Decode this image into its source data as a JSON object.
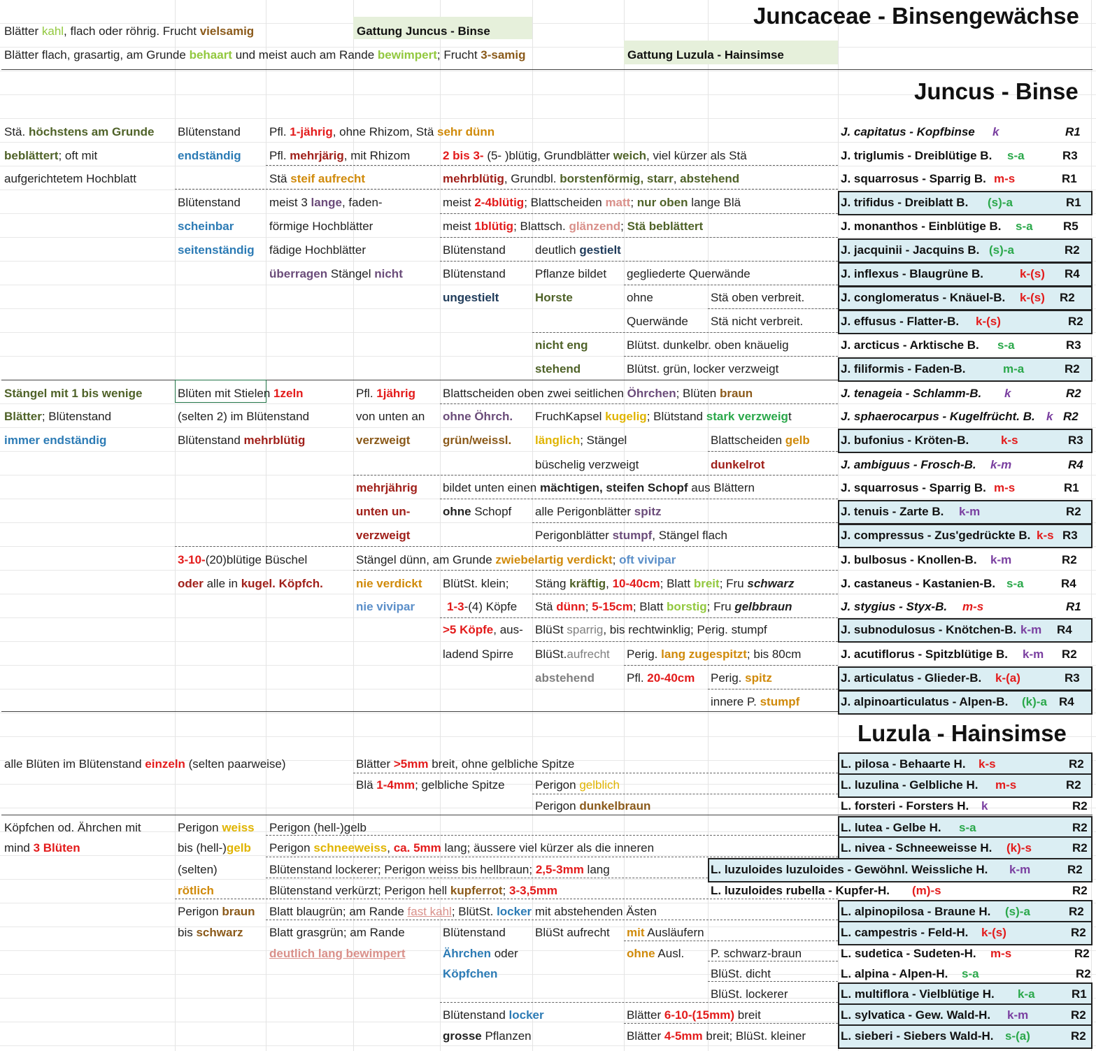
{
  "titles": {
    "main": "Juncaceae - Binsengewächse",
    "juncus": "Juncus - Binse",
    "luzula": "Luzula - Hainsimse"
  },
  "intro": {
    "row1": [
      "Blätter ",
      "kahl",
      ", flach oder röhrig. Frucht ",
      "vielsamig"
    ],
    "genus1": "Gattung Juncus - Binse",
    "row2": [
      "Blätter flach, grasartig, am Grunde ",
      "behaart",
      " und meist auch am Rande ",
      "bewimpert",
      "; Frucht ",
      "3-samig"
    ],
    "genus2": "Gattung Luzula - Hainsimse"
  },
  "juncus": {
    "a1": [
      "Stä. ",
      "höchstens am Grunde"
    ],
    "a2": [
      "beblättert",
      "; oft mit"
    ],
    "a3": "aufgerichtetem Hochblatt",
    "b1": "Blütenstand",
    "b2": "endständig",
    "b3": "Blütenstand",
    "b4": "scheinbar",
    "b5": "seitenständig",
    "r1": [
      "Pfl. ",
      "1-jährig",
      ", ohne Rhizom, Stä ",
      "sehr dünn"
    ],
    "r2a": [
      "Pfl. ",
      "mehrjärig",
      ", mit Rhizom"
    ],
    "r2b": [
      "2 bis 3-",
      " (5- )blütig, Grundblätter ",
      "weich",
      ", viel kürzer als Stä"
    ],
    "r3a": [
      "Stä ",
      "steif aufrecht"
    ],
    "r3b": [
      "mehrblütig",
      ", Grundbl. ",
      "borstenförmig, starr",
      ",  ",
      "abstehend"
    ],
    "r4a": [
      "meist 3 ",
      "lange",
      ", faden-"
    ],
    "r4b": [
      "meist ",
      "2-4blütig",
      "; Blattscheiden ",
      "matt",
      "; ",
      "nur oben",
      " lange Blä"
    ],
    "r5a": "förmige Hochblätter",
    "r5b": [
      "meist ",
      "1blütig",
      "; Blattsch. ",
      "glänzend",
      "; ",
      "Stä beblättert"
    ],
    "r6a": "fädige Hochblätter",
    "r6b": "Blütenstand",
    "r6c": [
      "deutlich ",
      "gestielt"
    ],
    "r7a": [
      "überragen",
      " Stängel ",
      "nicht"
    ],
    "r7b": "Blütenstand",
    "r7c": "Pflanze bildet",
    "r7d": "gegliederte Querwände",
    "r8b": "ungestielt",
    "r8c": "Horste",
    "r8d": "ohne",
    "r8e": "Stä oben verbreit.",
    "r9d": "Querwände",
    "r9e": "Stä nicht verbreit.",
    "r10c": "nicht eng",
    "r10d": "Blütst. dunkelbr. oben knäuelig",
    "r11c": "stehend",
    "r11d": "Blütst. grün, locker verzweigt",
    "s1a": "Stängel mit 1 bis wenige",
    "s1b": [
      "Blüten mit Stie",
      "len ",
      "1zeln"
    ],
    "s1c": [
      "Pfl. ",
      "1jährig"
    ],
    "s1d": [
      "Blattscheiden oben zwei seitlichen ",
      "Öhrchen",
      "; Blüten ",
      "braun"
    ],
    "s2a": [
      "Blätter",
      "; Blütenstand"
    ],
    "s2b": "(selten 2) im Blütenstand",
    "s2c": "von unten an",
    "s2d": "ohne Öhrch.",
    "s2e": [
      "FruchKapsel ",
      "kugelig",
      "; Blütstand ",
      "stark verzweig",
      "t"
    ],
    "s3a": "immer endständig",
    "s3b": [
      "Blütenstand ",
      "mehrblütig"
    ],
    "s3c": "verzweigt",
    "s3d": "grün/weissl.",
    "s3e": [
      "länglich",
      "; Stängel"
    ],
    "s3f": [
      "Blattscheiden ",
      "gelb"
    ],
    "s4e": "büschelig verzweigt",
    "s4f": "dunkelrot",
    "s5c": "mehrjährig",
    "s5d": [
      "bildet unten einen ",
      "mächtigen, steifen Schopf",
      " aus Blättern"
    ],
    "s6c": "unten un-",
    "s6d": [
      "ohne",
      " Schopf"
    ],
    "s6e": [
      "alle Perigonblätter ",
      "spitz"
    ],
    "s7c": "verzweigt",
    "s7e": [
      "Perigonblätter ",
      "stumpf",
      ", Stängel flach"
    ],
    "t1b": [
      "3-10-",
      "(20)blütige Büschel"
    ],
    "t1c": [
      "Stängel dünn, am Grunde ",
      "zwiebelartig verdickt",
      "; ",
      "oft vivipar"
    ],
    "t2b": [
      "oder",
      " alle in ",
      "kugel. Köpfch."
    ],
    "t2c": "nie verdickt",
    "t2d": "BlütSt. klein;",
    "t2e": [
      "Stäng ",
      "kräftig",
      ", ",
      "10-40cm",
      ";",
      " Blatt ",
      "breit",
      "; Fru ",
      "schwarz"
    ],
    "t3c": "nie vivipar",
    "t3d": [
      "1-3",
      "-(4) Köpfe"
    ],
    "t3e": [
      "Stä ",
      "dünn",
      "; ",
      "5-15cm",
      "; Blatt ",
      "borstig",
      "; Fru ",
      "gelbbraun"
    ],
    "t4d": [
      ">5 Köpfe",
      ", aus-"
    ],
    "t4e": [
      "BlüSt ",
      "sparrig",
      ", bis rechtwinklig; Perig. stumpf"
    ],
    "t5d": "ladend Spirre",
    "t5e": [
      "BlüSt.",
      "aufrecht"
    ],
    "t5f": [
      "Perig. ",
      "lang zugespitzt",
      "; bis 80cm"
    ],
    "t6e": "abstehend",
    "t6f": [
      "Pfl. ",
      "20-40cm"
    ],
    "t6g": [
      "Perig. ",
      "spitz"
    ],
    "t7g": [
      "innere P. ",
      "stumpf"
    ]
  },
  "juncus_species": [
    {
      "name": "J. capitatus - Kopfbinse",
      "code": "k",
      "r": "R1",
      "italic": true,
      "box": false
    },
    {
      "name": "J. triglumis - Dreiblütige B.",
      "code": "s-a",
      "r": "R3",
      "italic": false,
      "box": false
    },
    {
      "name": "J. squarrosus - Sparrig B.",
      "code": "m-s",
      "r": "R1",
      "italic": false,
      "box": false
    },
    {
      "name": "J. trifidus - Dreiblatt B.",
      "code": "(s)-a",
      "r": "R1",
      "italic": false,
      "box": true
    },
    {
      "name": "J. monanthos - Einblütige B.",
      "code": "s-a",
      "r": "R5",
      "italic": false,
      "box": false
    },
    {
      "name": "J. jacquinii - Jacquins B.",
      "code": "(s)-a",
      "r": "R2",
      "italic": false,
      "box": true
    },
    {
      "name": "J. inflexus - Blaugrüne B.",
      "code": "k-(s)",
      "r": "R4",
      "italic": false,
      "box": true
    },
    {
      "name": "J. conglomeratus - Knäuel-B.",
      "code": "k-(s)",
      "r": "R2",
      "italic": false,
      "box": true
    },
    {
      "name": "J. effusus - Flatter-B.",
      "code": "k-(s)",
      "r": "R2",
      "italic": false,
      "box": true
    },
    {
      "name": "J. arcticus - Arktische B.",
      "code": "s-a",
      "r": "R3",
      "italic": false,
      "box": false
    },
    {
      "name": "J. filiformis - Faden-B.",
      "code": "m-a",
      "r": "R2",
      "italic": false,
      "box": true
    },
    {
      "name": "J. tenageia - Schlamm-B.",
      "code": "k",
      "r": "R2",
      "italic": true,
      "box": false
    },
    {
      "name": "J. sphaerocarpus - Kugelfrücht. B.",
      "code": "k",
      "r": "R2",
      "italic": true,
      "box": false
    },
    {
      "name": "J. bufonius - Kröten-B.",
      "code": "k-s",
      "r": "R3",
      "italic": false,
      "box": true
    },
    {
      "name": "J. ambiguus - Frosch-B.",
      "code": "k-m",
      "r": "R4",
      "italic": true,
      "box": false
    },
    {
      "name": "J. squarrosus - Sparrig B.",
      "code": "m-s",
      "r": "R1",
      "italic": false,
      "box": false
    },
    {
      "name": "J. tenuis - Zarte B.",
      "code": "k-m",
      "r": "R2",
      "italic": false,
      "box": true
    },
    {
      "name": "J. compressus - Zus'gedrückte B.",
      "code": "k-s",
      "r": "R3",
      "italic": false,
      "box": true
    },
    {
      "name": "J. bulbosus - Knollen-B.",
      "code": "k-m",
      "r": "R2",
      "italic": false,
      "box": false
    },
    {
      "name": "J. castaneus - Kastanien-B.",
      "code": "s-a",
      "r": "R4",
      "italic": false,
      "box": false
    },
    {
      "name": "J. stygius - Styx-B.",
      "code": "m-s",
      "r": "R1",
      "italic": true,
      "box": false
    },
    {
      "name": "J. subnodulosus - Knötchen-B.",
      "code": "k-m",
      "r": "R4",
      "italic": false,
      "box": true
    },
    {
      "name": "J. acutiflorus - Spitzblütige B.",
      "code": "k-m",
      "r": "R2",
      "italic": false,
      "box": false
    },
    {
      "name": "J. articulatus - Glieder-B.",
      "code": "k-(a)",
      "r": "R3",
      "italic": false,
      "box": true
    },
    {
      "name": "J. alpinoarticulatus - Alpen-B.",
      "code": "(k)-a",
      "r": "R4",
      "italic": false,
      "box": true
    }
  ],
  "luzula": {
    "a1": [
      "alle Blüten im Blütenstand ",
      "einzeln",
      " (selten paarweise)"
    ],
    "p1": [
      "Blätter ",
      ">5mm",
      " breit, ohne gelbliche Spitze"
    ],
    "p2": [
      "Blä ",
      "1-4mm",
      "; gelbliche Spitze"
    ],
    "p2b": [
      "Perigon ",
      "gelblich"
    ],
    "p3b": [
      "Perigon ",
      "dunkelbraun"
    ],
    "k1": "Köpfchen od. Ährchen mit",
    "k2": [
      "mind ",
      "3 Blüten"
    ],
    "w1": [
      "Perigon ",
      "weiss"
    ],
    "w2": [
      "bis (hell-)",
      "gelb"
    ],
    "w3": "(selten)",
    "w4": "rötlich",
    "w5": [
      "Perigon ",
      "braun"
    ],
    "w6": [
      "bis ",
      "schwarz"
    ],
    "q1": "Perigon  (hell-)gelb",
    "q2": [
      "Perigon ",
      "schneeweiss",
      ", ",
      "ca.",
      "5mm",
      " lang; äussere viel kürzer als die inneren"
    ],
    "q3": [
      "Blütenstand lockerer; Perigon weiss bis hellbraun; ",
      "2,5-3mm",
      " lang"
    ],
    "q4": [
      "Blütenstand verkürzt; Perigon hell ",
      "kupferrot",
      "; ",
      "3-3,5mm"
    ],
    "q5": [
      "Blatt blaugrün; am Rande ",
      "fast kahl",
      "; BlütSt. ",
      "locker",
      " mit abstehenden Ästen"
    ],
    "q6": "Blatt grasgrün; am Rande",
    "q7": "deutlich lang bewimpert",
    "m1": "Blütenstand",
    "m2": [
      "Ährchen",
      " oder"
    ],
    "m3": "Köpfchen",
    "m4": [
      "Blütenstand ",
      "locker"
    ],
    "m5": [
      "grosse",
      " Pflanzen"
    ],
    "n1": "BlüSt aufrecht",
    "o1": [
      "mit",
      " Ausläufern"
    ],
    "o2": [
      "ohne",
      " Ausl."
    ],
    "o3": "P. schwarz-braun",
    "o4": "BlüSt. dicht",
    "o5": "BlüSt. lockerer",
    "o6": [
      "Blätter ",
      "6-10-(15mm)",
      " breit"
    ],
    "o7": [
      "Blätter ",
      "4-5mm",
      " breit; BlüSt. kleiner"
    ]
  },
  "luzula_species": [
    {
      "name": "L. pilosa - Behaarte H.",
      "code": "k-s",
      "r": "R2",
      "box": true
    },
    {
      "name": "L. luzulina - Gelbliche H.",
      "code": "m-s",
      "r": "R2",
      "box": true
    },
    {
      "name": "L. forsteri - Forsters H.",
      "code": "k",
      "r": "R2",
      "box": false
    },
    {
      "name": "L. lutea - Gelbe H.",
      "code": "s-a",
      "r": "R2",
      "box": true
    },
    {
      "name": "L. nivea - Schneeweisse H.",
      "code": "(k)-s",
      "r": "R2",
      "box": true
    },
    {
      "name": "L. luzuloides luzuloides - Gewöhnl. Weissliche H.",
      "code": "k-m",
      "r": "R2",
      "box": true
    },
    {
      "name": "L. luzuloides rubella - Kupfer-H.",
      "code": "(m)-s",
      "r": "R2",
      "box": false
    },
    {
      "name": "L. alpinopilosa - Braune H.",
      "code": "(s)-a",
      "r": "R2",
      "box": true
    },
    {
      "name": "L. campestris - Feld-H.",
      "code": "k-(s)",
      "r": "R2",
      "box": true
    },
    {
      "name": "L. sudetica - Sudeten-H.",
      "code": "m-s",
      "r": "R2",
      "box": false
    },
    {
      "name": "L. alpina - Alpen-H.",
      "code": "s-a",
      "r": "R2",
      "box": false
    },
    {
      "name": "L. multiflora - Vielblütige H.",
      "code": "k-a",
      "r": "R1",
      "box": true
    },
    {
      "name": "L. sylvatica - Gew. Wald-H.",
      "code": "k-m",
      "r": "R2",
      "box": true
    },
    {
      "name": "L. sieberi - Siebers Wald-H.",
      "code": "s-(a)",
      "r": "R2",
      "box": true
    }
  ],
  "code_colors": {
    "k": "#7a3fa0",
    "s-a": "#2aa84a",
    "m-s": "#e31b1b",
    "(s)-a": "#2aa84a",
    "k-(s)": "#e31b1b",
    "m-a": "#2aa84a",
    "k-s": "#e31b1b",
    "k-m": "#7a3fa0",
    "k-(a)": "#e31b1b",
    "(k)-a": "#2aa84a",
    "(k)-s": "#e31b1b",
    "(m)-s": "#e31b1b",
    "k-a": "#2aa84a",
    "s-(a)": "#2aa84a"
  }
}
